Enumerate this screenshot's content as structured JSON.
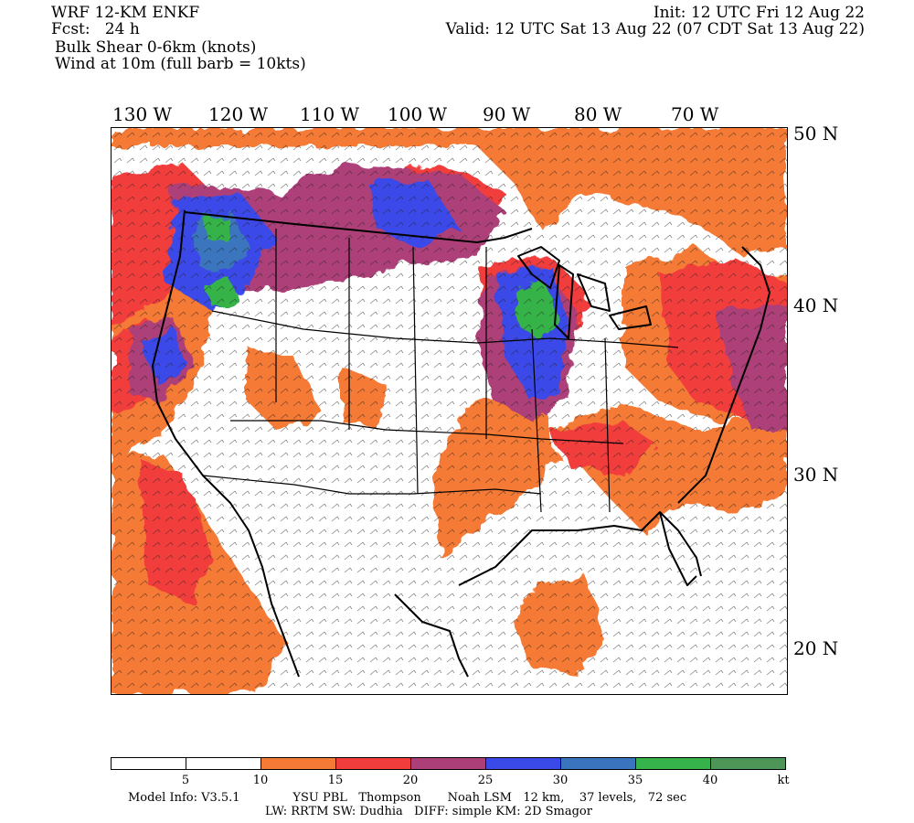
{
  "header": {
    "model": "WRF 12-KM ENKF",
    "forecast": "Fcst:   24 h",
    "field1": "Bulk Shear 0-6km (knots)",
    "field2": "Wind at 10m (full barb = 10kts)",
    "init": "Init: 12 UTC Fri 12 Aug 22",
    "valid": "Valid: 12 UTC Sat 13 Aug 22 (07 CDT Sat 13 Aug 22)"
  },
  "longitudes": [
    "130 W",
    "120 W",
    "110 W",
    "100 W",
    "90 W",
    "80 W",
    "70 W"
  ],
  "latitudes": [
    "50 N",
    "40 N",
    "30 N",
    "20 N"
  ],
  "legend": {
    "ticks": [
      "5",
      "10",
      "15",
      "20",
      "25",
      "30",
      "35",
      "40",
      "kt"
    ],
    "colors": [
      "#ffffff",
      "#ffffff",
      "#f57a35",
      "#f23d3d",
      "#ad3f78",
      "#3a4ae8",
      "#3a74be",
      "#36b34a",
      "#4e9657"
    ]
  },
  "footer": {
    "line1": "Model Info: V3.5.1              YSU PBL   Thompson       Noah LSM   12 km,    37 levels,   72 sec",
    "line2": "LW: RRTM SW: Dudhia   DIFF: simple KM: 2D Smagor"
  },
  "colors": {
    "shear_10_15": "#f57a35",
    "shear_15_20": "#f23d3d",
    "shear_20_25": "#ad3f78",
    "shear_25_30": "#3a4ae8",
    "shear_30_35": "#3a74be",
    "shear_35_40": "#36b34a",
    "border": "#000000"
  }
}
